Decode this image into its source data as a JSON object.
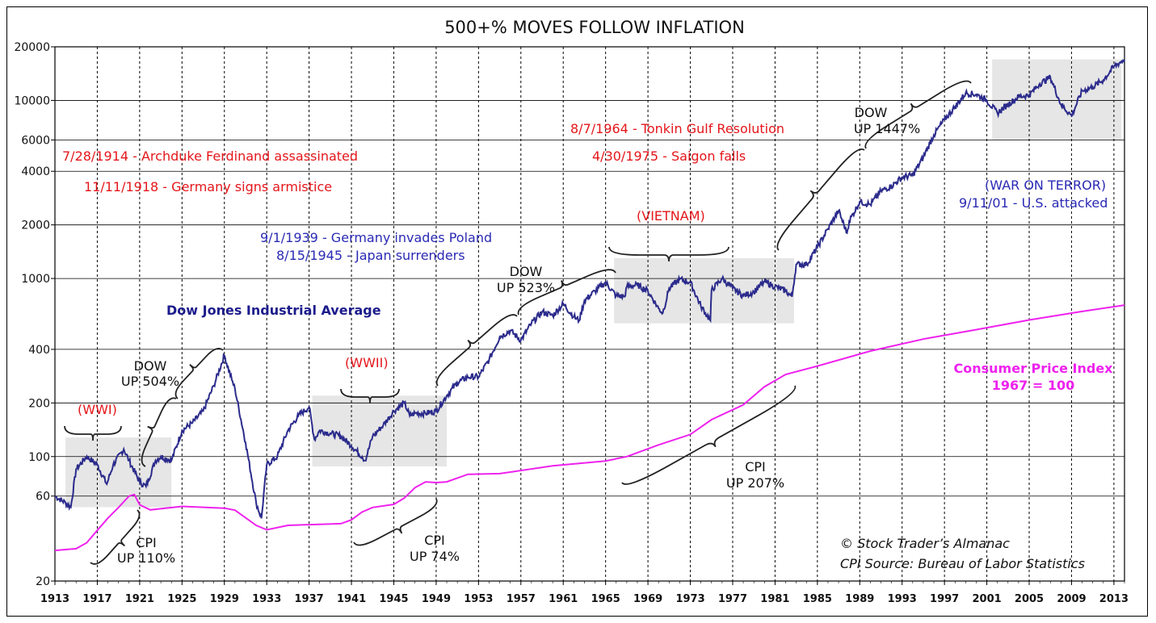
{
  "chart_data": {
    "type": "line",
    "title": "500+% MOVES FOLLOW INFLATION",
    "y_scale": "log",
    "ylim": [
      20,
      20000
    ],
    "xlim": [
      1913,
      2014
    ],
    "y_ticks": [
      20,
      60,
      100,
      200,
      400,
      1000,
      2000,
      4000,
      6000,
      10000,
      20000
    ],
    "x_ticks": [
      1913,
      1917,
      1921,
      1925,
      1929,
      1933,
      1937,
      1941,
      1945,
      1949,
      1953,
      1957,
      1961,
      1965,
      1969,
      1973,
      1977,
      1981,
      1985,
      1989,
      1993,
      1997,
      2001,
      2005,
      2009,
      2013
    ],
    "grid": true,
    "colors": {
      "dow": "#2b2b8c",
      "cpi": "#ee22ee",
      "shade": "#e6e6e6",
      "red_text": "#e4161b",
      "blue_text": "#2a2ab4"
    },
    "series": [
      {
        "key": "dow",
        "name": "Dow Jones Industrial Average",
        "x": [
          1913,
          1914,
          1914.5,
          1915,
          1916,
          1917,
          1917.9,
          1918.5,
          1919.5,
          1920,
          1921,
          1921.6,
          1922.5,
          1923,
          1924,
          1925,
          1926,
          1927,
          1928,
          1929,
          1929.7,
          1930,
          1931,
          1932,
          1932.5,
          1933,
          1934,
          1935,
          1936,
          1937,
          1937.5,
          1938,
          1939,
          1940,
          1941,
          1942,
          1942.3,
          1943,
          1944,
          1945,
          1946,
          1946.5,
          1947,
          1948,
          1949,
          1950,
          1951,
          1952,
          1953,
          1954,
          1955,
          1956,
          1957,
          1958,
          1959,
          1960,
          1961,
          1962,
          1962.5,
          1963,
          1964,
          1965,
          1966,
          1966.8,
          1967,
          1968,
          1969,
          1970,
          1970.4,
          1971,
          1972,
          1973,
          1974,
          1974.9,
          1975,
          1976,
          1977,
          1978,
          1979,
          1980,
          1981,
          1982,
          1982.6,
          1983,
          1984,
          1985,
          1986,
          1987,
          1987.8,
          1988,
          1989,
          1990,
          1991,
          1992,
          1993,
          1994,
          1995,
          1996,
          1997,
          1998,
          1999,
          2000,
          2001,
          2002,
          2003,
          2004,
          2005,
          2006,
          2007,
          2008,
          2009,
          2010,
          2011,
          2012,
          2013,
          2014
        ],
        "values": [
          60,
          55,
          52,
          85,
          100,
          90,
          70,
          90,
          110,
          95,
          72,
          68,
          95,
          100,
          95,
          140,
          155,
          180,
          250,
          370,
          270,
          240,
          120,
          55,
          45,
          90,
          100,
          140,
          170,
          190,
          125,
          140,
          135,
          130,
          115,
          100,
          95,
          130,
          150,
          180,
          200,
          170,
          175,
          175,
          180,
          220,
          260,
          280,
          280,
          350,
          470,
          510,
          450,
          560,
          650,
          620,
          720,
          610,
          580,
          750,
          850,
          950,
          800,
          790,
          900,
          920,
          850,
          680,
          640,
          880,
          990,
          950,
          700,
          580,
          860,
          1000,
          880,
          800,
          840,
          960,
          900,
          850,
          790,
          1200,
          1200,
          1500,
          1900,
          2400,
          1800,
          2100,
          2700,
          2600,
          3100,
          3300,
          3700,
          3800,
          4800,
          6400,
          7800,
          9200,
          11000,
          10800,
          10000,
          8500,
          9500,
          10500,
          10700,
          12400,
          13500,
          9500,
          8200,
          11300,
          11900,
          13000,
          15500,
          17000
        ]
      },
      {
        "key": "cpi",
        "name": "Consumer Price Index",
        "x": [
          1913,
          1915,
          1916,
          1917,
          1918,
          1919,
          1920,
          1920.5,
          1921,
          1922,
          1925,
          1929,
          1930,
          1932,
          1933,
          1935,
          1940,
          1941,
          1942,
          1943,
          1945,
          1946,
          1947,
          1948,
          1949,
          1950,
          1952,
          1955,
          1960,
          1965,
          1967,
          1970,
          1973,
          1975,
          1978,
          1980,
          1982,
          1985,
          1990,
          1995,
          2000,
          2005,
          2010,
          2014
        ],
        "values": [
          29.7,
          30.4,
          32.8,
          38.5,
          45.1,
          51.8,
          60,
          61.2,
          53.6,
          50.2,
          52.5,
          51.3,
          50,
          41.1,
          38.8,
          41.1,
          42,
          44.1,
          48.8,
          51.8,
          53.9,
          58.5,
          66.9,
          72.1,
          71.4,
          72.1,
          79.5,
          80.2,
          88.7,
          94.5,
          100,
          116.3,
          133.1,
          161.2,
          195.4,
          246.8,
          289.1,
          322.2,
          391.4,
          456.5,
          515.8,
          585.0,
          653.2,
          708.9
        ]
      }
    ],
    "shaded_regions": [
      {
        "label": "(WWI)",
        "x0": 1914.0,
        "x1": 1924.0,
        "y0": 52,
        "y1": 128
      },
      {
        "label": "(WWII)",
        "x0": 1937.3,
        "x1": 1950.0,
        "y0": 88,
        "y1": 220
      },
      {
        "label": "(VIETNAM)",
        "x0": 1965.8,
        "x1": 1982.8,
        "y0": 560,
        "y1": 1300
      },
      {
        "label": "(WAR ON TERROR)",
        "x0": 2001.5,
        "x1": 2013.7,
        "y0": 6000,
        "y1": 17000
      }
    ],
    "annotations": {
      "red": [
        "7/28/1914 - Archduke Ferdinand assassinated",
        "11/11/1918 - Germany signs armistice",
        "8/7/1964 - Tonkin Gulf Resolution",
        "4/30/1975 - Saigon falls"
      ],
      "blue": [
        "9/1/1939 - Germany invades Poland",
        "8/15/1945 - Japan surrenders",
        "9/11/01 - U.S. attacked"
      ],
      "dow_label": "Dow Jones Industrial Average",
      "cpi_label_1": "Consumer Price Index",
      "cpi_label_2": "1967 = 100",
      "moves": [
        {
          "l1": "DOW",
          "l2": "UP 504%"
        },
        {
          "l1": "DOW",
          "l2": "UP 523%"
        },
        {
          "l1": "DOW",
          "l2": "UP 1447%"
        },
        {
          "l1": "CPI",
          "l2": "UP 110%"
        },
        {
          "l1": "CPI",
          "l2": "UP 74%"
        },
        {
          "l1": "CPI",
          "l2": "UP 207%"
        }
      ],
      "copyright": "© Stock Trader’s Almanac",
      "source": "CPI Source: Bureau of Labor Statistics"
    }
  }
}
